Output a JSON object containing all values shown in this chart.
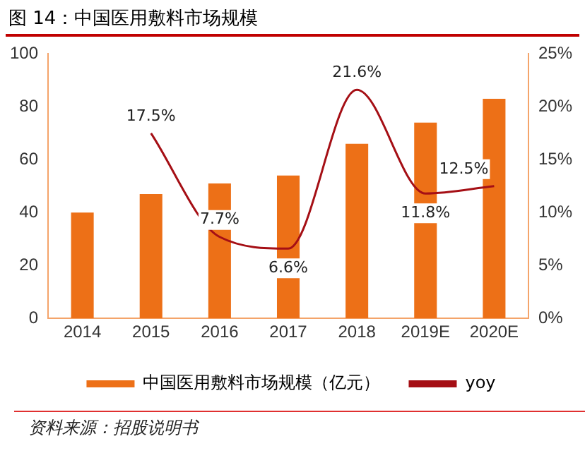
{
  "chart_data": {
    "type": "bar",
    "title": "图 14：中国医用敷料市场规模",
    "categories": [
      "2014",
      "2015",
      "2016",
      "2017",
      "2018",
      "2019E",
      "2020E"
    ],
    "series": [
      {
        "name": "中国医用敷料市场规模（亿元）",
        "color": "#ed7017",
        "values": [
          40,
          47,
          51,
          54,
          66,
          74,
          83
        ]
      },
      {
        "name": "yoy",
        "type": "line",
        "axis": "y2",
        "color": "#a50f15",
        "values": [
          null,
          17.5,
          7.7,
          6.6,
          21.6,
          11.8,
          12.5
        ],
        "value_labels": [
          null,
          "17.5%",
          "7.7%",
          "6.6%",
          "21.6%",
          "11.8%",
          "12.5%"
        ]
      }
    ],
    "ylim": [
      0,
      100
    ],
    "yticks": [
      0,
      20,
      40,
      60,
      80,
      100
    ],
    "y2lim": [
      0,
      25
    ],
    "y2ticks": [
      {
        "value": 0,
        "label": "0%"
      },
      {
        "value": 5,
        "label": "5%"
      },
      {
        "value": 10,
        "label": "10%"
      },
      {
        "value": 15,
        "label": "15%"
      },
      {
        "value": 20,
        "label": "20%"
      },
      {
        "value": 25,
        "label": "25%"
      }
    ],
    "grid": false,
    "legend": "bottom",
    "marker": "none",
    "line_style": "solid",
    "annotations": [
      "资料来源：招股说明书"
    ]
  }
}
